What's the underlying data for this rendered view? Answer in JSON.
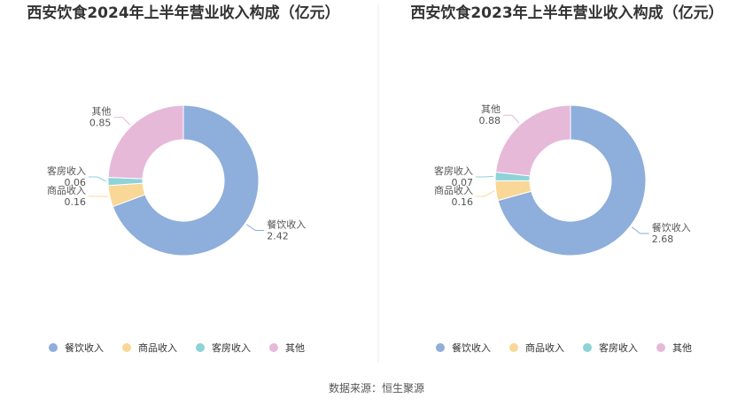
{
  "source": "数据来源：恒生聚源",
  "chart_data": [
    {
      "type": "pie",
      "title": "西安饮食2024年上半年营业收入构成（亿元）",
      "categories": [
        "餐饮收入",
        "商品收入",
        "客房收入",
        "其他"
      ],
      "values": [
        2.42,
        0.16,
        0.06,
        0.85
      ],
      "value_labels": [
        "2.42",
        "0.16",
        "0.06",
        "0.85"
      ],
      "legend_position": "bottom"
    },
    {
      "type": "pie",
      "title": "西安饮食2023年上半年营业收入构成（亿元）",
      "categories": [
        "餐饮收入",
        "商品收入",
        "客房收入",
        "其他"
      ],
      "values": [
        2.68,
        0.16,
        0.07,
        0.88
      ],
      "value_labels": [
        "2.68",
        "0.16",
        "0.07",
        "0.88"
      ],
      "legend_position": "bottom"
    }
  ],
  "colors": {
    "餐饮收入": "#8eaedb",
    "商品收入": "#f9d797",
    "客房收入": "#8dd3d8",
    "其他": "#e6b9d9"
  }
}
